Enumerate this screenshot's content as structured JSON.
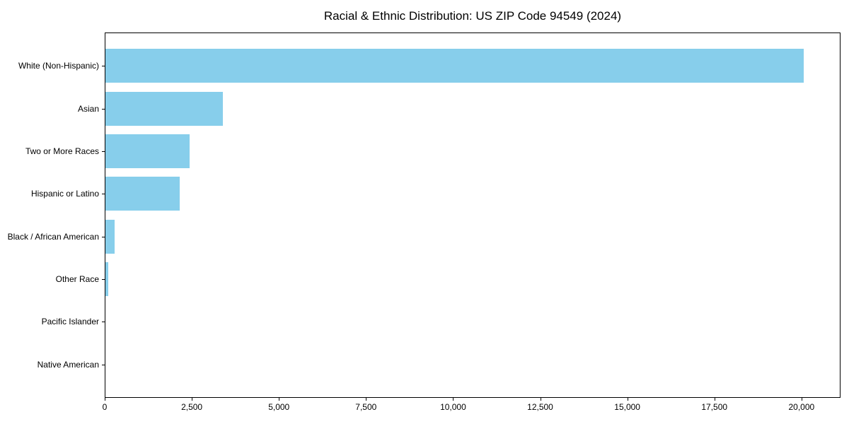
{
  "figure": {
    "background": "#ffffff",
    "text_color": "#000000",
    "axis_color": "#000000"
  },
  "chart_data": {
    "type": "bar",
    "orientation": "horizontal",
    "title": "Racial & Ethnic Distribution: US ZIP Code 94549 (2024)",
    "xlabel": "",
    "ylabel": "",
    "categories": [
      "White (Non-Hispanic)",
      "Asian",
      "Two or More Races",
      "Hispanic or Latino",
      "Black / African American",
      "Other Race",
      "Pacific Islander",
      "Native American"
    ],
    "values": [
      20080,
      3375,
      2420,
      2135,
      265,
      80,
      0,
      0
    ],
    "bar_color": "#87CEEB",
    "xlim": [
      0,
      21120
    ],
    "x_ticks": [
      0,
      2500,
      5000,
      7500,
      10000,
      12500,
      15000,
      17500,
      20000
    ],
    "x_tick_labels": [
      "0",
      "2,500",
      "5,000",
      "7,500",
      "10,000",
      "12,500",
      "15,000",
      "17,500",
      "20,000"
    ],
    "grid": false,
    "legend": "none"
  }
}
